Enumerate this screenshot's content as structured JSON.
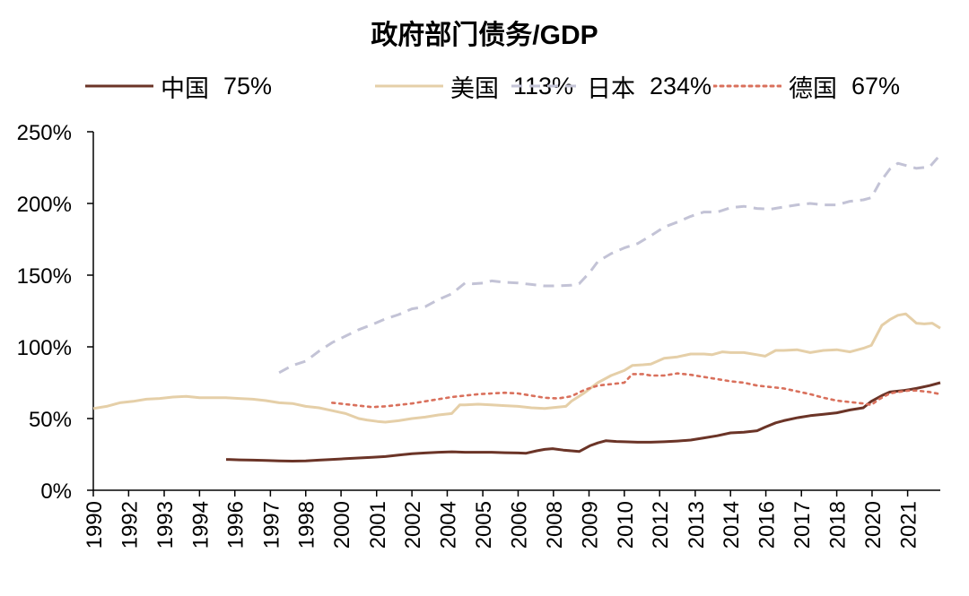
{
  "chart_data": {
    "type": "line",
    "title": "政府部门债务/GDP",
    "xlabel": "",
    "ylabel": "",
    "ylim": [
      0,
      250
    ],
    "xlim": [
      1990.0,
      2021.9
    ],
    "y_ticks": [
      "0%",
      "50%",
      "100%",
      "150%",
      "200%",
      "250%"
    ],
    "y_tick_values": [
      0,
      50,
      100,
      150,
      200,
      250
    ],
    "x_ticks": [
      {
        "label": "1990",
        "x": 1990.0
      },
      {
        "label": "1992",
        "x": 1991.33
      },
      {
        "label": "1993",
        "x": 1992.67
      },
      {
        "label": "1994",
        "x": 1994.0
      },
      {
        "label": "1996",
        "x": 1995.33
      },
      {
        "label": "1997",
        "x": 1996.67
      },
      {
        "label": "1998",
        "x": 1998.0
      },
      {
        "label": "2000",
        "x": 1999.33
      },
      {
        "label": "2001",
        "x": 2000.67
      },
      {
        "label": "2002",
        "x": 2002.0
      },
      {
        "label": "2004",
        "x": 2003.33
      },
      {
        "label": "2005",
        "x": 2004.67
      },
      {
        "label": "2006",
        "x": 2006.0
      },
      {
        "label": "2008",
        "x": 2007.33
      },
      {
        "label": "2009",
        "x": 2008.67
      },
      {
        "label": "2010",
        "x": 2010.0
      },
      {
        "label": "2012",
        "x": 2011.33
      },
      {
        "label": "2013",
        "x": 2012.67
      },
      {
        "label": "2014",
        "x": 2014.0
      },
      {
        "label": "2016",
        "x": 2015.33
      },
      {
        "label": "2017",
        "x": 2016.67
      },
      {
        "label": "2018",
        "x": 2018.0
      },
      {
        "label": "2020",
        "x": 2019.33
      },
      {
        "label": "2021",
        "x": 2020.67
      }
    ],
    "grid": false,
    "legend_position": "top",
    "series": [
      {
        "name": "中国",
        "value_label": "75%",
        "color": "#6b3427",
        "style": "solid",
        "points": [
          [
            1995.0,
            21.5
          ],
          [
            1995.5,
            21.2
          ],
          [
            1996.0,
            21.0
          ],
          [
            1996.5,
            20.8
          ],
          [
            1997.0,
            20.5
          ],
          [
            1997.5,
            20.3
          ],
          [
            1998.0,
            20.5
          ],
          [
            1998.5,
            21.0
          ],
          [
            1999.0,
            21.5
          ],
          [
            1999.5,
            22.0
          ],
          [
            2000.0,
            22.5
          ],
          [
            2000.5,
            23.0
          ],
          [
            2001.0,
            23.5
          ],
          [
            2001.5,
            24.5
          ],
          [
            2002.0,
            25.5
          ],
          [
            2002.5,
            26.0
          ],
          [
            2003.0,
            26.5
          ],
          [
            2003.5,
            26.8
          ],
          [
            2004.0,
            26.5
          ],
          [
            2004.5,
            26.5
          ],
          [
            2005.0,
            26.5
          ],
          [
            2005.5,
            26.2
          ],
          [
            2006.0,
            26.0
          ],
          [
            2006.3,
            25.8
          ],
          [
            2006.7,
            27.5
          ],
          [
            2007.0,
            28.5
          ],
          [
            2007.3,
            29.0
          ],
          [
            2007.7,
            28.0
          ],
          [
            2008.0,
            27.5
          ],
          [
            2008.3,
            27.0
          ],
          [
            2008.7,
            31.0
          ],
          [
            2009.0,
            33.0
          ],
          [
            2009.3,
            34.5
          ],
          [
            2009.7,
            34.0
          ],
          [
            2010.0,
            33.8
          ],
          [
            2010.5,
            33.5
          ],
          [
            2011.0,
            33.5
          ],
          [
            2011.5,
            33.8
          ],
          [
            2012.0,
            34.3
          ],
          [
            2012.5,
            35.0
          ],
          [
            2013.0,
            36.5
          ],
          [
            2013.5,
            38.0
          ],
          [
            2014.0,
            40.0
          ],
          [
            2014.5,
            40.5
          ],
          [
            2015.0,
            41.5
          ],
          [
            2015.3,
            44.0
          ],
          [
            2015.7,
            47.0
          ],
          [
            2016.0,
            48.5
          ],
          [
            2016.5,
            50.5
          ],
          [
            2017.0,
            52.0
          ],
          [
            2017.5,
            53.0
          ],
          [
            2018.0,
            54.0
          ],
          [
            2018.5,
            56.0
          ],
          [
            2019.0,
            57.5
          ],
          [
            2019.3,
            62.0
          ],
          [
            2019.7,
            66.0
          ],
          [
            2020.0,
            68.5
          ],
          [
            2020.5,
            69.5
          ],
          [
            2021.0,
            71.0
          ],
          [
            2021.5,
            73.0
          ],
          [
            2021.9,
            75.0
          ]
        ]
      },
      {
        "name": "美国",
        "value_label": "113%",
        "color": "#e5cfa8",
        "style": "solid",
        "points": [
          [
            1990.0,
            57.0
          ],
          [
            1990.5,
            58.5
          ],
          [
            1991.0,
            61.0
          ],
          [
            1991.5,
            62.0
          ],
          [
            1992.0,
            63.5
          ],
          [
            1992.5,
            64.0
          ],
          [
            1993.0,
            65.0
          ],
          [
            1993.5,
            65.5
          ],
          [
            1994.0,
            64.5
          ],
          [
            1994.5,
            64.5
          ],
          [
            1995.0,
            64.5
          ],
          [
            1995.5,
            64.0
          ],
          [
            1996.0,
            63.5
          ],
          [
            1996.5,
            62.5
          ],
          [
            1997.0,
            61.0
          ],
          [
            1997.5,
            60.5
          ],
          [
            1998.0,
            58.5
          ],
          [
            1998.5,
            57.5
          ],
          [
            1999.0,
            55.5
          ],
          [
            1999.5,
            53.5
          ],
          [
            2000.0,
            50.0
          ],
          [
            2000.3,
            49.0
          ],
          [
            2000.7,
            48.0
          ],
          [
            2001.0,
            47.5
          ],
          [
            2001.5,
            48.5
          ],
          [
            2002.0,
            50.0
          ],
          [
            2002.5,
            51.0
          ],
          [
            2003.0,
            52.5
          ],
          [
            2003.5,
            53.5
          ],
          [
            2003.8,
            59.5
          ],
          [
            2004.0,
            59.5
          ],
          [
            2004.5,
            60.0
          ],
          [
            2005.0,
            59.5
          ],
          [
            2005.5,
            59.0
          ],
          [
            2006.0,
            58.5
          ],
          [
            2006.5,
            57.5
          ],
          [
            2007.0,
            57.0
          ],
          [
            2007.5,
            58.0
          ],
          [
            2007.8,
            58.5
          ],
          [
            2008.0,
            62.0
          ],
          [
            2008.5,
            68.0
          ],
          [
            2009.0,
            75.0
          ],
          [
            2009.5,
            80.0
          ],
          [
            2010.0,
            83.5
          ],
          [
            2010.3,
            87.0
          ],
          [
            2010.7,
            87.5
          ],
          [
            2011.0,
            88.0
          ],
          [
            2011.5,
            92.0
          ],
          [
            2012.0,
            93.0
          ],
          [
            2012.5,
            95.0
          ],
          [
            2013.0,
            95.0
          ],
          [
            2013.3,
            94.5
          ],
          [
            2013.7,
            96.5
          ],
          [
            2014.0,
            96.0
          ],
          [
            2014.5,
            96.0
          ],
          [
            2015.0,
            94.5
          ],
          [
            2015.3,
            93.5
          ],
          [
            2015.7,
            97.5
          ],
          [
            2016.0,
            97.5
          ],
          [
            2016.5,
            98.0
          ],
          [
            2017.0,
            96.0
          ],
          [
            2017.5,
            97.5
          ],
          [
            2018.0,
            98.0
          ],
          [
            2018.5,
            96.5
          ],
          [
            2019.0,
            99.0
          ],
          [
            2019.3,
            101.0
          ],
          [
            2019.7,
            115.0
          ],
          [
            2020.0,
            119.0
          ],
          [
            2020.3,
            122.0
          ],
          [
            2020.6,
            123.0
          ],
          [
            2021.0,
            116.5
          ],
          [
            2021.3,
            116.0
          ],
          [
            2021.6,
            116.5
          ],
          [
            2021.9,
            113.0
          ]
        ]
      },
      {
        "name": "日本",
        "value_label": "234%",
        "color": "#c3c3d6",
        "style": "dashed",
        "points": [
          [
            1997.0,
            82.0
          ],
          [
            1997.5,
            87.0
          ],
          [
            1998.0,
            90.0
          ],
          [
            1998.5,
            97.0
          ],
          [
            1999.0,
            103.0
          ],
          [
            1999.5,
            107.5
          ],
          [
            2000.0,
            112.0
          ],
          [
            2000.5,
            115.5
          ],
          [
            2001.0,
            119.5
          ],
          [
            2001.5,
            122.5
          ],
          [
            2002.0,
            126.5
          ],
          [
            2002.5,
            128.0
          ],
          [
            2003.0,
            133.0
          ],
          [
            2003.5,
            137.0
          ],
          [
            2003.8,
            141.5
          ],
          [
            2004.0,
            144.5
          ],
          [
            2004.3,
            144.0
          ],
          [
            2004.7,
            144.5
          ],
          [
            2005.0,
            146.0
          ],
          [
            2005.5,
            145.0
          ],
          [
            2006.0,
            144.5
          ],
          [
            2006.5,
            143.5
          ],
          [
            2007.0,
            142.5
          ],
          [
            2007.5,
            142.5
          ],
          [
            2008.0,
            143.0
          ],
          [
            2008.3,
            144.0
          ],
          [
            2008.7,
            152.0
          ],
          [
            2009.0,
            159.5
          ],
          [
            2009.5,
            165.0
          ],
          [
            2010.0,
            169.0
          ],
          [
            2010.5,
            172.0
          ],
          [
            2011.0,
            177.5
          ],
          [
            2011.5,
            183.5
          ],
          [
            2012.0,
            187.0
          ],
          [
            2012.5,
            191.0
          ],
          [
            2013.0,
            194.0
          ],
          [
            2013.5,
            194.0
          ],
          [
            2014.0,
            197.0
          ],
          [
            2014.5,
            198.0
          ],
          [
            2015.0,
            196.5
          ],
          [
            2015.5,
            196.0
          ],
          [
            2016.0,
            197.5
          ],
          [
            2016.5,
            199.0
          ],
          [
            2017.0,
            200.0
          ],
          [
            2017.5,
            199.0
          ],
          [
            2018.0,
            199.0
          ],
          [
            2018.5,
            201.5
          ],
          [
            2019.0,
            202.5
          ],
          [
            2019.3,
            204.0
          ],
          [
            2019.6,
            214.0
          ],
          [
            2020.0,
            224.0
          ],
          [
            2020.3,
            228.0
          ],
          [
            2020.7,
            226.0
          ],
          [
            2021.0,
            224.5
          ],
          [
            2021.5,
            225.5
          ],
          [
            2021.9,
            234.0
          ]
        ]
      },
      {
        "name": "德国",
        "value_label": "67%",
        "color": "#d9705c",
        "style": "dotted",
        "points": [
          [
            1999.0,
            61.0
          ],
          [
            1999.5,
            60.0
          ],
          [
            2000.0,
            59.0
          ],
          [
            2000.5,
            58.0
          ],
          [
            2001.0,
            58.5
          ],
          [
            2001.5,
            59.5
          ],
          [
            2002.0,
            60.5
          ],
          [
            2002.5,
            62.0
          ],
          [
            2003.0,
            63.5
          ],
          [
            2003.5,
            65.0
          ],
          [
            2004.0,
            66.0
          ],
          [
            2004.5,
            67.0
          ],
          [
            2005.0,
            67.5
          ],
          [
            2005.5,
            68.0
          ],
          [
            2006.0,
            67.5
          ],
          [
            2006.5,
            66.0
          ],
          [
            2007.0,
            64.5
          ],
          [
            2007.5,
            64.0
          ],
          [
            2008.0,
            65.5
          ],
          [
            2008.5,
            70.0
          ],
          [
            2009.0,
            73.0
          ],
          [
            2009.5,
            74.0
          ],
          [
            2010.0,
            75.0
          ],
          [
            2010.3,
            81.0
          ],
          [
            2010.7,
            81.0
          ],
          [
            2011.0,
            80.0
          ],
          [
            2011.5,
            80.0
          ],
          [
            2012.0,
            81.5
          ],
          [
            2012.5,
            80.5
          ],
          [
            2013.0,
            79.0
          ],
          [
            2013.5,
            77.5
          ],
          [
            2014.0,
            76.0
          ],
          [
            2014.5,
            75.0
          ],
          [
            2015.0,
            73.0
          ],
          [
            2015.5,
            72.0
          ],
          [
            2016.0,
            71.0
          ],
          [
            2016.5,
            69.0
          ],
          [
            2017.0,
            67.0
          ],
          [
            2017.5,
            64.5
          ],
          [
            2018.0,
            62.5
          ],
          [
            2018.5,
            61.5
          ],
          [
            2019.0,
            60.5
          ],
          [
            2019.3,
            59.5
          ],
          [
            2019.6,
            63.5
          ],
          [
            2020.0,
            67.5
          ],
          [
            2020.3,
            68.5
          ],
          [
            2020.7,
            69.5
          ],
          [
            2021.0,
            69.5
          ],
          [
            2021.5,
            68.5
          ],
          [
            2021.9,
            67.0
          ]
        ]
      }
    ]
  }
}
